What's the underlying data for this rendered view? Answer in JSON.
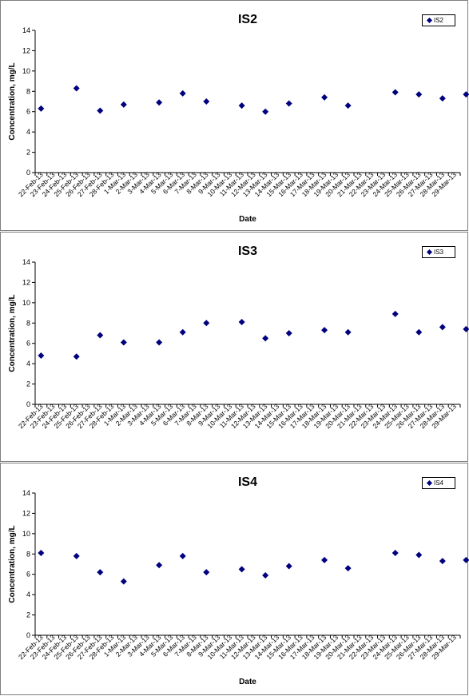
{
  "chart_data": [
    {
      "type": "scatter",
      "title": "IS2",
      "xlabel": "Date",
      "ylabel": "Concentration, mg/L",
      "ylim": [
        0,
        14
      ],
      "yticks": [
        0,
        2,
        4,
        6,
        8,
        10,
        12,
        14
      ],
      "grid": false,
      "legend_position": "top-right",
      "categories": [
        "22-Feb-13",
        "23-Feb-13",
        "24-Feb-13",
        "25-Feb-13",
        "26-Feb-13",
        "27-Feb-13",
        "28-Feb-13",
        "1-Mar-13",
        "2-Mar-13",
        "3-Mar-13",
        "4-Mar-13",
        "5-Mar-13",
        "6-Mar-13",
        "7-Mar-13",
        "8-Mar-13",
        "9-Mar-13",
        "10-Mar-13",
        "11-Mar-13",
        "12-Mar-13",
        "13-Mar-13",
        "14-Mar-13",
        "15-Mar-13",
        "16-Mar-13",
        "17-Mar-13",
        "18-Mar-13",
        "19-Mar-13",
        "20-Mar-13",
        "21-Mar-13",
        "22-Mar-13",
        "23-Mar-13",
        "24-Mar-13",
        "25-Mar-13",
        "26-Mar-13",
        "27-Mar-13",
        "28-Mar-13",
        "29-Mar-13"
      ],
      "series": [
        {
          "name": "IS2",
          "color": "#00007f",
          "points": [
            [
              "22-Feb-13",
              6.3
            ],
            [
              "25-Feb-13",
              8.3
            ],
            [
              "27-Feb-13",
              6.1
            ],
            [
              "1-Mar-13",
              6.7
            ],
            [
              "4-Mar-13",
              6.9
            ],
            [
              "6-Mar-13",
              7.8
            ],
            [
              "8-Mar-13",
              7.0
            ],
            [
              "11-Mar-13",
              6.6
            ],
            [
              "13-Mar-13",
              6.0
            ],
            [
              "15-Mar-13",
              6.8
            ],
            [
              "18-Mar-13",
              7.4
            ],
            [
              "20-Mar-13",
              6.6
            ],
            [
              "24-Mar-13",
              7.9
            ],
            [
              "26-Mar-13",
              7.7
            ],
            [
              "28-Mar-13",
              7.3
            ],
            [
              "30-Mar-13",
              7.7
            ]
          ]
        }
      ]
    },
    {
      "type": "scatter",
      "title": "IS3",
      "xlabel": "",
      "ylabel": "Concentration, mg/L",
      "ylim": [
        0,
        14
      ],
      "yticks": [
        0,
        2,
        4,
        6,
        8,
        10,
        12,
        14
      ],
      "grid": false,
      "legend_position": "top-right",
      "categories": [
        "22-Feb-13",
        "23-Feb-13",
        "24-Feb-13",
        "25-Feb-13",
        "26-Feb-13",
        "27-Feb-13",
        "28-Feb-13",
        "1-Mar-13",
        "2-Mar-13",
        "3-Mar-13",
        "4-Mar-13",
        "5-Mar-13",
        "6-Mar-13",
        "7-Mar-13",
        "8-Mar-13",
        "9-Mar-13",
        "10-Mar-13",
        "11-Mar-13",
        "12-Mar-13",
        "13-Mar-13",
        "14-Mar-13",
        "15-Mar-13",
        "16-Mar-13",
        "17-Mar-13",
        "18-Mar-13",
        "19-Mar-13",
        "20-Mar-13",
        "21-Mar-13",
        "22-Mar-13",
        "23-Mar-13",
        "24-Mar-13",
        "25-Mar-13",
        "26-Mar-13",
        "27-Mar-13",
        "28-Mar-13",
        "29-Mar-13"
      ],
      "series": [
        {
          "name": "IS3",
          "color": "#00007f",
          "points": [
            [
              "22-Feb-13",
              4.8
            ],
            [
              "25-Feb-13",
              4.7
            ],
            [
              "27-Feb-13",
              6.8
            ],
            [
              "1-Mar-13",
              6.1
            ],
            [
              "4-Mar-13",
              6.1
            ],
            [
              "6-Mar-13",
              7.1
            ],
            [
              "8-Mar-13",
              8.0
            ],
            [
              "11-Mar-13",
              8.1
            ],
            [
              "13-Mar-13",
              6.5
            ],
            [
              "15-Mar-13",
              7.0
            ],
            [
              "18-Mar-13",
              7.3
            ],
            [
              "20-Mar-13",
              7.1
            ],
            [
              "24-Mar-13",
              8.9
            ],
            [
              "26-Mar-13",
              7.1
            ],
            [
              "28-Mar-13",
              7.6
            ],
            [
              "30-Mar-13",
              7.4
            ]
          ]
        }
      ]
    },
    {
      "type": "scatter",
      "title": "IS4",
      "xlabel": "Date",
      "ylabel": "Concentration, mg/L",
      "ylim": [
        0,
        14
      ],
      "yticks": [
        0,
        2,
        4,
        6,
        8,
        10,
        12,
        14
      ],
      "grid": false,
      "legend_position": "top-right",
      "categories": [
        "22-Feb-13",
        "23-Feb-13",
        "24-Feb-13",
        "25-Feb-13",
        "26-Feb-13",
        "27-Feb-13",
        "28-Feb-13",
        "1-Mar-13",
        "2-Mar-13",
        "3-Mar-13",
        "4-Mar-13",
        "5-Mar-13",
        "6-Mar-13",
        "7-Mar-13",
        "8-Mar-13",
        "9-Mar-13",
        "10-Mar-13",
        "11-Mar-13",
        "12-Mar-13",
        "13-Mar-13",
        "14-Mar-13",
        "15-Mar-13",
        "16-Mar-13",
        "17-Mar-13",
        "18-Mar-13",
        "19-Mar-13",
        "20-Mar-13",
        "21-Mar-13",
        "22-Mar-13",
        "23-Mar-13",
        "24-Mar-13",
        "25-Mar-13",
        "26-Mar-13",
        "27-Mar-13",
        "28-Mar-13",
        "29-Mar-13"
      ],
      "series": [
        {
          "name": "IS4",
          "color": "#00007f",
          "points": [
            [
              "22-Feb-13",
              8.1
            ],
            [
              "25-Feb-13",
              7.8
            ],
            [
              "27-Feb-13",
              6.2
            ],
            [
              "1-Mar-13",
              5.3
            ],
            [
              "4-Mar-13",
              6.9
            ],
            [
              "6-Mar-13",
              7.8
            ],
            [
              "8-Mar-13",
              6.2
            ],
            [
              "11-Mar-13",
              6.5
            ],
            [
              "13-Mar-13",
              5.9
            ],
            [
              "15-Mar-13",
              6.8
            ],
            [
              "18-Mar-13",
              7.4
            ],
            [
              "20-Mar-13",
              6.6
            ],
            [
              "24-Mar-13",
              8.1
            ],
            [
              "26-Mar-13",
              7.9
            ],
            [
              "28-Mar-13",
              7.3
            ],
            [
              "30-Mar-13",
              7.4
            ]
          ]
        }
      ]
    }
  ]
}
